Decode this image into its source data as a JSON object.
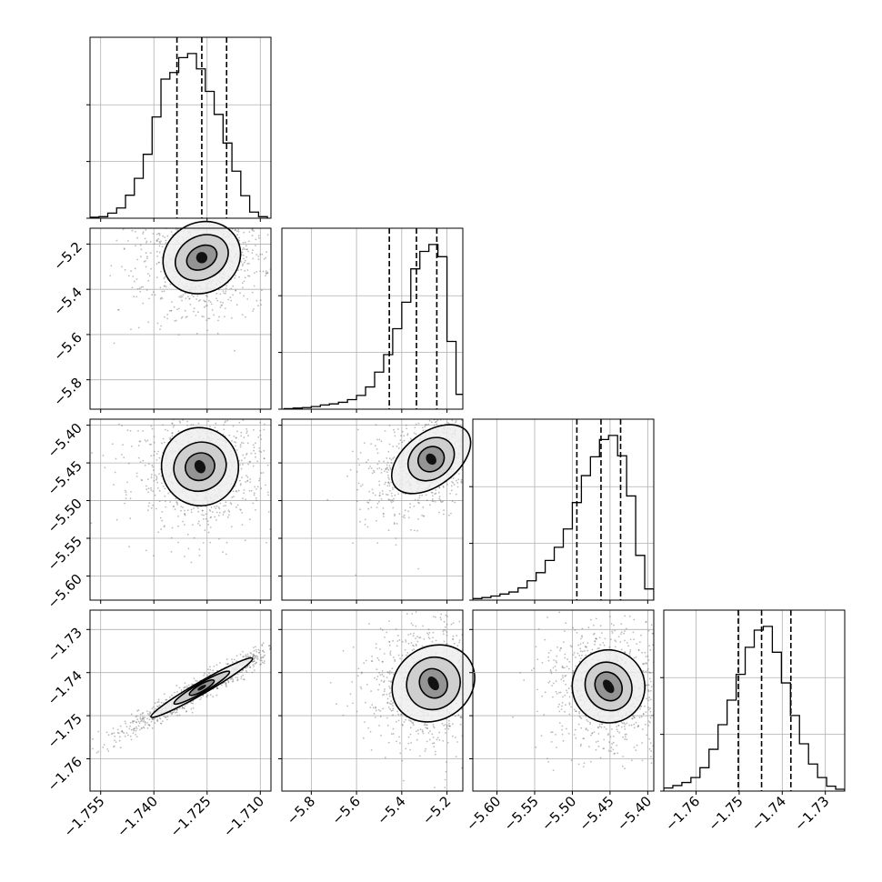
{
  "chart_data": {
    "type": "corner",
    "grid": true,
    "n_params": 4,
    "quantile_lines": "dashed",
    "params": [
      {
        "index": 0,
        "range": [
          -1.758,
          -1.707
        ],
        "ticks": [
          -1.755,
          -1.74,
          -1.725,
          -1.71
        ],
        "tick_labels": [
          "−1.755",
          "−1.740",
          "−1.725",
          "−1.710"
        ],
        "quantiles": [
          -1.7335,
          -1.7265,
          -1.7195
        ]
      },
      {
        "index": 1,
        "range": [
          -5.93,
          -5.13
        ],
        "ticks": [
          -5.8,
          -5.6,
          -5.4,
          -5.2
        ],
        "tick_labels": [
          "−5.8",
          "−5.6",
          "−5.4",
          "−5.2"
        ],
        "quantiles": [
          -5.455,
          -5.335,
          -5.245
        ]
      },
      {
        "index": 2,
        "range": [
          -5.632,
          -5.392
        ],
        "ticks": [
          -5.6,
          -5.55,
          -5.5,
          -5.45,
          -5.4
        ],
        "tick_labels": [
          "−5.60",
          "−5.55",
          "−5.50",
          "−5.45",
          "−5.40"
        ],
        "quantiles": [
          -5.494,
          -5.462,
          -5.436
        ]
      },
      {
        "index": 3,
        "range": [
          -1.7675,
          -1.7255
        ],
        "ticks": [
          -1.76,
          -1.75,
          -1.74,
          -1.73
        ],
        "tick_labels": [
          "−1.76",
          "−1.75",
          "−1.74",
          "−1.73"
        ],
        "quantiles": [
          -1.7502,
          -1.7448,
          -1.738
        ]
      }
    ],
    "histograms": [
      {
        "param": 0,
        "edges": [
          -1.758,
          -1.7555,
          -1.753,
          -1.7505,
          -1.748,
          -1.7455,
          -1.743,
          -1.7405,
          -1.738,
          -1.7355,
          -1.733,
          -1.7305,
          -1.728,
          -1.7255,
          -1.723,
          -1.7205,
          -1.718,
          -1.7155,
          -1.713,
          -1.7105,
          -1.708
        ],
        "counts": [
          2,
          3,
          10,
          20,
          45,
          78,
          125,
          198,
          272,
          285,
          314,
          322,
          292,
          248,
          203,
          147,
          92,
          44,
          12,
          3
        ]
      },
      {
        "param": 1,
        "edges": [
          -5.92,
          -5.88,
          -5.84,
          -5.8,
          -5.76,
          -5.72,
          -5.68,
          -5.64,
          -5.6,
          -5.56,
          -5.52,
          -5.48,
          -5.44,
          -5.4,
          -5.36,
          -5.32,
          -5.28,
          -5.24,
          -5.2,
          -5.16,
          -5.12
        ],
        "counts": [
          1,
          2,
          3,
          5,
          8,
          10,
          13,
          18,
          26,
          42,
          70,
          103,
          152,
          202,
          265,
          298,
          311,
          288,
          128,
          28
        ]
      },
      {
        "param": 2,
        "edges": [
          -5.632,
          -5.62,
          -5.608,
          -5.596,
          -5.584,
          -5.572,
          -5.56,
          -5.548,
          -5.536,
          -5.524,
          -5.512,
          -5.5,
          -5.488,
          -5.476,
          -5.464,
          -5.452,
          -5.44,
          -5.428,
          -5.416,
          -5.404,
          -5.392
        ],
        "counts": [
          3,
          5,
          8,
          12,
          16,
          24,
          38,
          54,
          78,
          104,
          140,
          192,
          245,
          282,
          316,
          324,
          284,
          205,
          88,
          22
        ]
      },
      {
        "param": 3,
        "edges": [
          -1.7675,
          -1.7654,
          -1.7633,
          -1.7612,
          -1.7591,
          -1.757,
          -1.7549,
          -1.7528,
          -1.7507,
          -1.7486,
          -1.7465,
          -1.7444,
          -1.7423,
          -1.7402,
          -1.7381,
          -1.736,
          -1.7339,
          -1.7318,
          -1.7297,
          -1.7276,
          -1.7255
        ],
        "counts": [
          5,
          9,
          14,
          22,
          38,
          68,
          108,
          148,
          190,
          234,
          262,
          268,
          226,
          176,
          123,
          77,
          44,
          22,
          8,
          3
        ]
      }
    ],
    "pairs": [
      {
        "x_param": 0,
        "y_param": 1,
        "peak": [
          -1.7265,
          -5.26
        ],
        "contour_peak_offset": [
          0.0,
          0.0
        ],
        "contour_radii": [
          [
            0.0045,
            0.05
          ],
          [
            0.0078,
            0.095
          ],
          [
            0.0112,
            0.155
          ]
        ],
        "contour_rotation_deg": -28
      },
      {
        "x_param": 0,
        "y_param": 2,
        "peak": [
          -1.727,
          -5.455
        ],
        "contour_peak_offset": [
          0.0,
          0.0
        ],
        "contour_radii": [
          [
            0.0042,
            0.018
          ],
          [
            0.0075,
            0.032
          ],
          [
            0.0108,
            0.052
          ]
        ],
        "contour_rotation_deg": -25
      },
      {
        "x_param": 1,
        "y_param": 2,
        "peak": [
          -5.27,
          -5.445
        ],
        "contour_peak_offset": [
          0.0,
          0.0
        ],
        "contour_radii": [
          [
            0.06,
            0.016
          ],
          [
            0.11,
            0.026
          ],
          [
            0.2,
            0.035
          ]
        ],
        "contour_rotation_deg": -37
      },
      {
        "x_param": 0,
        "y_param": 3,
        "peak": [
          -1.7265,
          -1.7435
        ],
        "contour_peak_offset": [
          0.0,
          0.0
        ],
        "contour_radii": [
          [
            0.004,
            0.0008
          ],
          [
            0.009,
            0.0011
          ],
          [
            0.0165,
            0.0014
          ]
        ],
        "contour_rotation_deg": -30
      },
      {
        "x_param": 1,
        "y_param": 3,
        "peak": [
          -5.26,
          -1.7425
        ],
        "contour_peak_offset": [
          0.0,
          0.0
        ],
        "contour_radii": [
          [
            0.06,
            0.0035
          ],
          [
            0.12,
            0.006
          ],
          [
            0.19,
            0.0085
          ]
        ],
        "contour_rotation_deg": -32
      },
      {
        "x_param": 2,
        "y_param": 3,
        "peak": [
          -5.452,
          -1.7432
        ],
        "contour_peak_offset": [
          0.0,
          0.0
        ],
        "contour_radii": [
          [
            0.017,
            0.0035
          ],
          [
            0.03,
            0.0058
          ],
          [
            0.048,
            0.0085
          ]
        ],
        "contour_rotation_deg": -35
      }
    ]
  }
}
